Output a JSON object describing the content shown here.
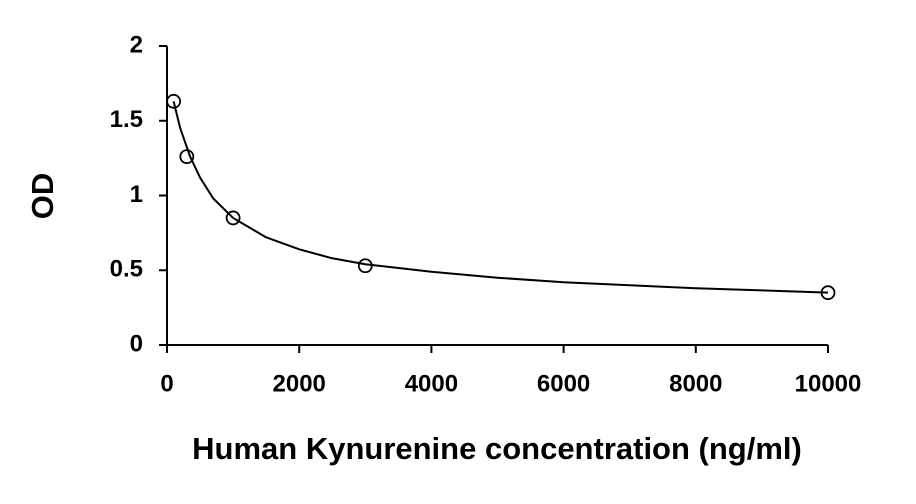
{
  "chart_data": {
    "type": "scatter",
    "xlabel": "Human Kynurenine concentration (ng/ml)",
    "ylabel": "OD",
    "x": [
      100,
      300,
      1000,
      3000,
      10000
    ],
    "values": [
      1.63,
      1.26,
      0.85,
      0.53,
      0.35
    ],
    "color": "#000000",
    "fit": {
      "x": [
        100,
        200,
        350,
        500,
        700,
        1000,
        1500,
        2000,
        2500,
        3000,
        4000,
        5000,
        6000,
        7000,
        8000,
        9000,
        10000
      ],
      "values": [
        1.63,
        1.45,
        1.26,
        1.12,
        0.98,
        0.85,
        0.72,
        0.64,
        0.58,
        0.54,
        0.49,
        0.45,
        0.42,
        0.4,
        0.38,
        0.365,
        0.35
      ]
    },
    "xlim": [
      0,
      10000
    ],
    "xticks": [
      0,
      2000,
      4000,
      6000,
      8000,
      10000
    ],
    "ylim": [
      0,
      2
    ],
    "yticks": [
      0,
      0.5,
      1,
      1.5,
      2
    ],
    "grid": false
  }
}
